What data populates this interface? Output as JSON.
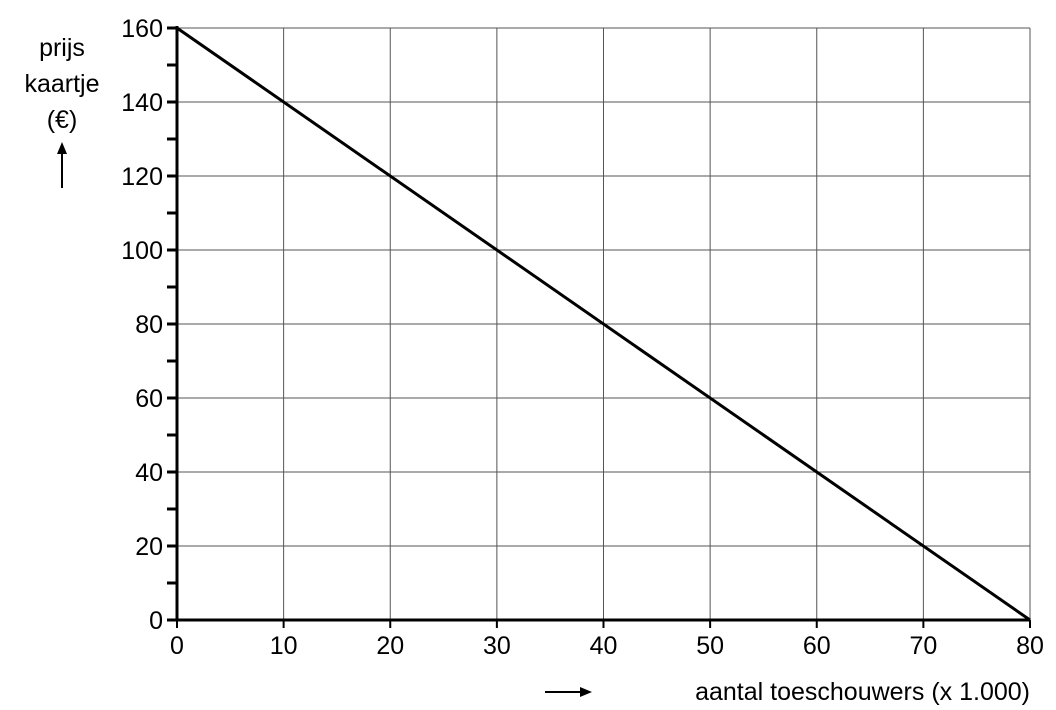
{
  "chart_data": {
    "type": "line",
    "ylabel_lines": [
      "prijs",
      "kaartje",
      "(€)"
    ],
    "xlabel": "aantal toeschouwers (x 1.000)",
    "xlim": [
      0,
      80
    ],
    "ylim": [
      0,
      160
    ],
    "x_ticks": [
      0,
      10,
      20,
      30,
      40,
      50,
      60,
      70,
      80
    ],
    "y_ticks": [
      0,
      20,
      40,
      60,
      80,
      100,
      120,
      140,
      160
    ],
    "y_minor_ticks": [
      10,
      30,
      50,
      70,
      90,
      110,
      130,
      150
    ],
    "grid": true,
    "series": [
      {
        "x": [
          0,
          80
        ],
        "y": [
          160,
          0
        ]
      }
    ]
  }
}
